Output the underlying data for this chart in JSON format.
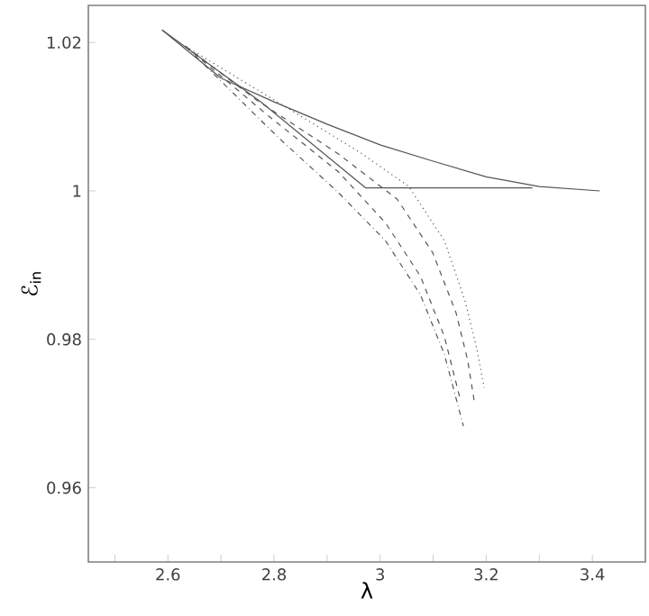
{
  "chart_data": {
    "type": "line",
    "xlabel": "λ",
    "ylabel": "ℰ$_{in}$",
    "xlim": [
      2.45,
      3.5
    ],
    "ylim": [
      0.95,
      1.025
    ],
    "xticks": [
      {
        "value": 2.5,
        "label": null
      },
      2.6,
      {
        "value": 2.7,
        "label": null
      },
      2.8,
      {
        "value": 2.9,
        "label": null
      },
      3,
      {
        "value": 3.1,
        "label": null
      },
      3.2,
      {
        "value": 3.3,
        "label": null
      },
      3.4
    ],
    "yticks": [
      0.96,
      0.98,
      1,
      1.02
    ],
    "grid": false,
    "marker": "none",
    "series": [
      {
        "color": "#555555",
        "line_style": "solid",
        "x": [
          2.589,
          2.7,
          2.8,
          2.9,
          3.0,
          3.1,
          3.2,
          3.3,
          3.414
        ],
        "values": [
          1.0217,
          1.0152,
          1.012,
          1.009,
          1.0062,
          1.004,
          1.0019,
          1.0006,
          1.0
        ]
      },
      {
        "color": "#555555",
        "line_style": "solid",
        "x": [
          2.589,
          2.777,
          2.973,
          3.287
        ],
        "values": [
          1.0217,
          1.0119,
          1.0004,
          1.0004
        ]
      },
      {
        "color": "#555555",
        "line_style": "dotted",
        "x": [
          2.633,
          2.866,
          2.966,
          3.054,
          3.121,
          3.16,
          3.182,
          3.196
        ],
        "values": [
          1.0195,
          1.0094,
          1.005,
          1.0006,
          0.9933,
          0.9852,
          0.9788,
          0.9735
        ]
      },
      {
        "color": "#555555",
        "line_style": "dashed",
        "x": [
          2.633,
          2.766,
          2.921,
          3.032,
          3.099,
          3.143,
          3.165,
          3.178
        ],
        "values": [
          1.0195,
          1.0123,
          1.005,
          0.9989,
          0.9917,
          0.9836,
          0.9772,
          0.9714
        ]
      },
      {
        "color": "#555555",
        "line_style": "dashed",
        "x": [
          2.633,
          2.788,
          2.921,
          3.01,
          3.076,
          3.121,
          3.15
        ],
        "values": [
          1.0195,
          1.0102,
          1.0026,
          0.9957,
          0.9885,
          0.9804,
          0.9722
        ]
      },
      {
        "color": "#555555",
        "line_style": "dashdot",
        "x": [
          2.633,
          2.811,
          2.921,
          3.01,
          3.076,
          3.121,
          3.157
        ],
        "values": [
          1.0195,
          1.007,
          0.9998,
          0.9933,
          0.986,
          0.978,
          0.9683
        ]
      }
    ]
  }
}
